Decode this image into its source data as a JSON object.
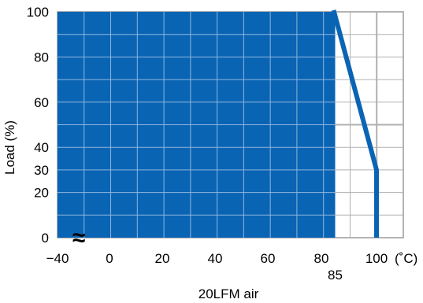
{
  "chart_data": {
    "type": "area",
    "title": "",
    "ylabel": "Load (%)",
    "xlabel": "20LFM air",
    "x_unit": "(˚C)",
    "xlim": [
      -40,
      100
    ],
    "ylim": [
      0,
      100
    ],
    "x_ticks": [
      {
        "value": -40,
        "label": "−40"
      },
      {
        "value": -30,
        "label": "0"
      },
      {
        "value": -20,
        "label": "20"
      },
      {
        "value": -10,
        "label": "40"
      },
      {
        "value": 0,
        "label": "60"
      },
      {
        "value": 10,
        "label": "80"
      },
      {
        "value": 20,
        "label": "100"
      }
    ],
    "x_ticks_note": "axis is broken between -40 and 0 (shown with a squiggle)",
    "x_extra_tick": {
      "value": 85,
      "label": "85"
    },
    "y_ticks": [
      0,
      20,
      30,
      40,
      60,
      80,
      100
    ],
    "grid": true,
    "break_symbol": "≈",
    "series": [
      {
        "name": "",
        "color": "#0a64b4",
        "points": [
          [
            -40,
            100
          ],
          [
            85,
            100
          ],
          [
            100,
            30
          ],
          [
            100,
            0
          ]
        ]
      }
    ]
  }
}
